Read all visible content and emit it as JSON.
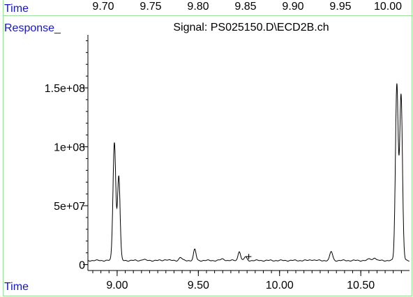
{
  "top_axis": {
    "label": "Time",
    "ticks": [
      "9.70",
      "9.75",
      "9.80",
      "9.85",
      "9.90",
      "9.95",
      "10.00"
    ],
    "tick_values": [
      9.7,
      9.75,
      9.8,
      9.85,
      9.9,
      9.95,
      10.0
    ],
    "range": [
      9.675,
      10.035
    ]
  },
  "response_label": "Response_",
  "chart_data": {
    "type": "line",
    "title": "Signal: PS025150.D\\ECD2B.ch",
    "xlabel": "Time",
    "ylabel": "Response_",
    "xlim": [
      8.82,
      10.8
    ],
    "ylim": [
      -5000000,
      195000000
    ],
    "x_ticks": [
      9.0,
      9.5,
      10.0,
      10.5
    ],
    "x_tick_labels": [
      "9.00",
      "9.50",
      "10.00",
      "10.50"
    ],
    "y_ticks": [
      0,
      50000000,
      100000000,
      150000000
    ],
    "y_tick_labels": [
      "0",
      "5e+07",
      "1e+08",
      "1.5e+08"
    ],
    "grid": false,
    "series": [
      {
        "color": "#000000",
        "baseline": 3500000,
        "peaks": [
          {
            "x": 8.983,
            "height": 100500000,
            "width": 0.0085
          },
          {
            "x": 9.01,
            "height": 71500000,
            "width": 0.008
          },
          {
            "x": 9.16,
            "height": 900000,
            "width": 0.01
          },
          {
            "x": 9.3,
            "height": 800000,
            "width": 0.012
          },
          {
            "x": 9.39,
            "height": 2500000,
            "width": 0.009
          },
          {
            "x": 9.478,
            "height": 9500000,
            "width": 0.0075
          },
          {
            "x": 9.65,
            "height": 1200000,
            "width": 0.012
          },
          {
            "x": 9.752,
            "height": 8000000,
            "width": 0.0075
          },
          {
            "x": 9.79,
            "height": 3000000,
            "width": 0.008
          },
          {
            "x": 10.2,
            "height": 700000,
            "width": 0.012
          },
          {
            "x": 10.318,
            "height": 7500000,
            "width": 0.0085
          },
          {
            "x": 10.555,
            "height": 1500000,
            "width": 0.009
          },
          {
            "x": 10.585,
            "height": 2500000,
            "width": 0.008
          },
          {
            "x": 10.722,
            "height": 149000000,
            "width": 0.0085
          },
          {
            "x": 10.748,
            "height": 140000000,
            "width": 0.0085
          }
        ]
      }
    ],
    "marker": {
      "symbol": "+",
      "x": 9.81,
      "y": 7000000
    }
  },
  "colors": {
    "axis_label": "#1515c8",
    "frame": "#9be09b",
    "trace": "#000000"
  }
}
